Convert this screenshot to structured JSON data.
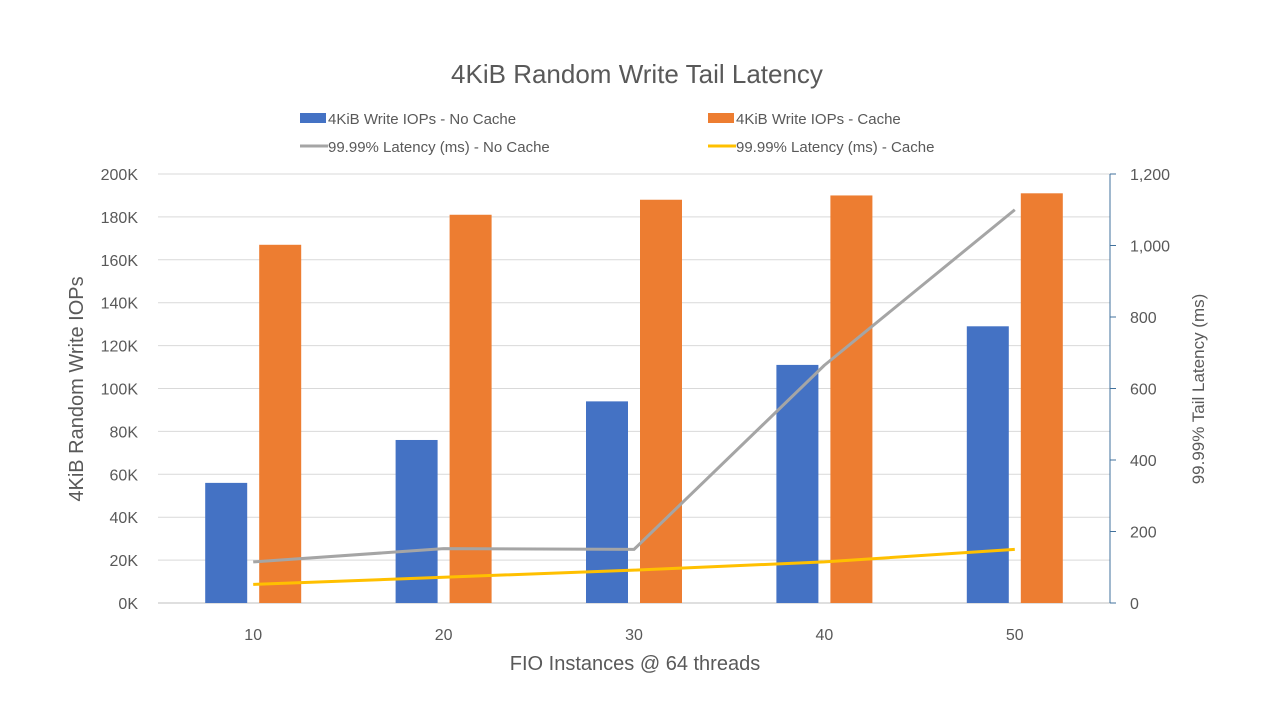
{
  "chart_data": {
    "type": "bar",
    "title": "4KiB Random Write Tail Latency",
    "xlabel": "FIO Instances @ 64 threads",
    "ylabel": "4KiB Random Write IOPs",
    "y2label": "99.99% Tail Latency (ms)",
    "categories": [
      "10",
      "20",
      "30",
      "40",
      "50"
    ],
    "ylim": [
      0,
      200000
    ],
    "y2lim": [
      0,
      1200
    ],
    "yticks": [
      "0K",
      "20K",
      "40K",
      "60K",
      "80K",
      "100K",
      "120K",
      "140K",
      "160K",
      "180K",
      "200K"
    ],
    "y2ticks": [
      "0",
      "200",
      "400",
      "600",
      "800",
      "1,000",
      "1,200"
    ],
    "grid": true,
    "legend_position": "top",
    "series": [
      {
        "name": "4KiB Write IOPs - No Cache",
        "type": "bar",
        "axis": "left",
        "color": "#4472c4",
        "values": [
          56000,
          76000,
          94000,
          111000,
          129000
        ]
      },
      {
        "name": "4KiB Write IOPs - Cache",
        "type": "bar",
        "axis": "left",
        "color": "#ed7d31",
        "values": [
          167000,
          181000,
          188000,
          190000,
          191000
        ]
      },
      {
        "name": "99.99% Latency (ms) - No Cache",
        "type": "line",
        "axis": "right",
        "color": "#a5a5a5",
        "values": [
          115,
          152,
          150,
          665,
          1100
        ]
      },
      {
        "name": "99.99% Latency (ms) - Cache",
        "type": "line",
        "axis": "right",
        "color": "#ffc000",
        "values": [
          52,
          72,
          92,
          115,
          150
        ]
      }
    ]
  }
}
